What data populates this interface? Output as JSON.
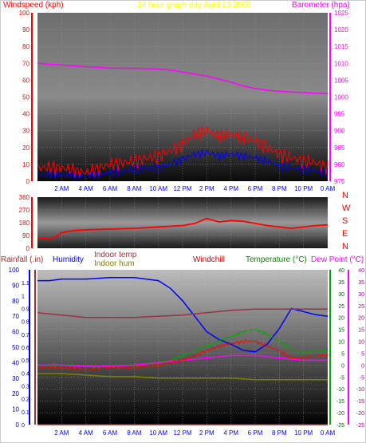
{
  "colors": {
    "red": "#ff0000",
    "darkred": "#cc0000",
    "magenta": "#ff00ff",
    "blue": "#0000ff",
    "yellow": "#ffff00",
    "green": "#00aa00",
    "olive": "#808000",
    "maroon": "#993344",
    "brown": "#993333",
    "navy": "#000099"
  },
  "header": {
    "windspeed_label": "Windspeed (kph)",
    "graph_title": "24 hour graph day   April 13 2006",
    "barometer_label": "Barometer (hpa)"
  },
  "legend_bottom": {
    "rainfall": "Rainfall (.in)",
    "humidity": "Humidity",
    "indoor_temp": "Indoor temp",
    "indoor_hum": "Indoor hum",
    "windchill": "Windchill",
    "temperature": "Temperature (°C)",
    "dew_point": "Dew Point (°C)"
  },
  "compass": [
    "N",
    "W",
    "S",
    "E",
    "N"
  ],
  "chart_data": [
    {
      "type": "line",
      "panel": "wind-barometer",
      "title": "24 hour graph day   April 13 2006",
      "x_ticks": [
        "2 AM",
        "4 AM",
        "6 AM",
        "8 AM",
        "10 AM",
        "12 PM",
        "2 PM",
        "4 PM",
        "6 PM",
        "8 PM",
        "10 PM",
        "0 AM"
      ],
      "left_axis": {
        "label": "Windspeed (kph)",
        "ylim": [
          0,
          100
        ],
        "ticks": [
          0,
          10,
          20,
          30,
          40,
          50,
          60,
          70,
          80,
          90,
          100
        ]
      },
      "right_axis": {
        "label": "Barometer (hpa)",
        "ylim": [
          975,
          1025
        ],
        "ticks": [
          975,
          980,
          985,
          990,
          995,
          1000,
          1005,
          1010,
          1015,
          1020,
          1025
        ]
      },
      "series": [
        {
          "name": "Barometer (hpa)",
          "axis": "right",
          "color": "#ff00ff",
          "x": [
            0,
            2,
            4,
            6,
            8,
            10,
            11,
            12,
            13,
            14,
            15,
            16,
            17,
            18,
            19,
            20,
            21,
            22,
            23,
            24
          ],
          "y": [
            1010,
            1009.5,
            1009,
            1008.6,
            1008.5,
            1008.3,
            1008,
            1007.4,
            1006.8,
            1006.2,
            1005.3,
            1004.4,
            1003.3,
            1002.5,
            1002,
            1001.7,
            1001.5,
            1001.3,
            1001.1,
            1001
          ]
        },
        {
          "name": "Gust",
          "axis": "left",
          "color": "#ff0000",
          "x": [
            0,
            2,
            4,
            6,
            8,
            10,
            11,
            12,
            13,
            14,
            15,
            16,
            17,
            18,
            19,
            20,
            21,
            22,
            23,
            24
          ],
          "y": [
            8,
            8,
            5,
            10,
            12,
            15,
            18,
            22,
            28,
            30,
            27,
            28,
            26,
            24,
            20,
            16,
            14,
            12,
            11,
            8
          ]
        },
        {
          "name": "Average",
          "axis": "left",
          "color": "#0000ff",
          "x": [
            0,
            2,
            4,
            6,
            8,
            10,
            11,
            12,
            13,
            14,
            15,
            16,
            17,
            18,
            19,
            20,
            21,
            22,
            23,
            24
          ],
          "y": [
            4,
            4,
            3,
            5,
            7,
            8,
            10,
            13,
            16,
            17,
            15,
            16,
            15,
            14,
            12,
            9,
            8,
            7,
            6,
            5
          ]
        }
      ]
    },
    {
      "type": "line",
      "panel": "wind-direction",
      "left_axis": {
        "ylim": [
          0,
          360
        ],
        "ticks": [
          0,
          90,
          180,
          270,
          360
        ]
      },
      "right_axis": {
        "ticks": [
          "N",
          "W",
          "S",
          "E",
          "N"
        ]
      },
      "series": [
        {
          "name": "Wind direction",
          "color": "#ff0000",
          "x": [
            0,
            0.5,
            1,
            1.5,
            2,
            3,
            4,
            6,
            8,
            10,
            12,
            13,
            14,
            15,
            16,
            17,
            18,
            19,
            20,
            21,
            22,
            23,
            24
          ],
          "y": [
            75,
            70,
            65,
            80,
            110,
            125,
            130,
            135,
            140,
            150,
            160,
            175,
            210,
            185,
            195,
            190,
            175,
            160,
            150,
            140,
            150,
            160,
            165
          ]
        }
      ]
    },
    {
      "type": "line",
      "panel": "temperature-humidity-rain",
      "axes": {
        "rainfall": {
          "label": "Rainfall (.in)",
          "ylim": [
            0,
            1.2
          ],
          "ticks": [
            0,
            0.1,
            0.2,
            0.3,
            0.4,
            0.5,
            0.6,
            0.7,
            0.8,
            0.9,
            1,
            1.1
          ]
        },
        "humidity": {
          "label": "Humidity",
          "ylim": [
            0,
            100
          ],
          "ticks": [
            0,
            10,
            20,
            30,
            40,
            50,
            60,
            70,
            80,
            90,
            100
          ]
        },
        "temperature": {
          "label": "Temperature (°C)",
          "ylim": [
            -25,
            40
          ],
          "ticks": [
            -25,
            -20,
            -15,
            -10,
            -5,
            0,
            5,
            10,
            15,
            20,
            25,
            30,
            35,
            40
          ]
        },
        "dew_point": {
          "label": "Dew Point (°C)",
          "ylim": [
            -25,
            40
          ],
          "ticks": [
            -25,
            -20,
            -15,
            -10,
            -5,
            0,
            5,
            10,
            15,
            20,
            25,
            30,
            35,
            40
          ]
        }
      },
      "series": [
        {
          "name": "Humidity",
          "axis": "humidity",
          "color": "#0000ff",
          "x": [
            0,
            1,
            2,
            4,
            6,
            8,
            10,
            11,
            12,
            13,
            14,
            15,
            16,
            17,
            18,
            19,
            20,
            21,
            22,
            23,
            24
          ],
          "y": [
            93,
            93,
            94,
            94,
            95,
            95,
            93,
            88,
            80,
            70,
            60,
            55,
            52,
            48,
            47,
            52,
            62,
            75,
            73,
            71,
            70
          ]
        },
        {
          "name": "Indoor temp",
          "axis": "temperature",
          "color": "#993344",
          "x": [
            0,
            2,
            4,
            6,
            8,
            10,
            12,
            14,
            16,
            18,
            20,
            22,
            24
          ],
          "y": [
            22,
            21,
            20,
            20,
            20,
            20.5,
            21,
            22,
            23,
            23.5,
            23.5,
            23.5,
            23.5
          ]
        },
        {
          "name": "Temperature (°C)",
          "axis": "temperature",
          "color": "#00aa00",
          "x": [
            0,
            2,
            4,
            6,
            8,
            10,
            11,
            12,
            13,
            14,
            15,
            16,
            17,
            18,
            19,
            20,
            21,
            22,
            23,
            24
          ],
          "y": [
            0,
            0,
            -0.5,
            -0.5,
            0,
            1,
            2,
            4,
            6,
            8,
            10,
            12,
            14,
            15,
            13,
            10,
            7,
            5,
            6,
            6
          ]
        },
        {
          "name": "Dew Point (°C)",
          "axis": "dew_point",
          "color": "#ff00ff",
          "x": [
            0,
            2,
            4,
            6,
            8,
            10,
            12,
            14,
            16,
            18,
            20,
            22,
            24
          ],
          "y": [
            0,
            0,
            -0.5,
            -0.5,
            0,
            1,
            2,
            3,
            4,
            4,
            3,
            2,
            2
          ]
        },
        {
          "name": "Windchill",
          "axis": "temperature",
          "color": "#ff0000",
          "x": [
            0,
            2,
            4,
            6,
            8,
            10,
            11,
            12,
            13,
            14,
            15,
            16,
            17,
            18,
            19,
            20,
            21,
            22,
            23,
            24
          ],
          "y": [
            -1,
            -1,
            -2,
            -1,
            -1,
            0,
            1,
            2,
            4,
            6,
            8,
            9,
            10,
            10,
            8,
            6,
            3,
            3,
            4,
            4
          ]
        },
        {
          "name": "Indoor hum",
          "axis": "humidity",
          "color": "#808000",
          "x": [
            0,
            2,
            4,
            6,
            8,
            10,
            12,
            14,
            16,
            18,
            20,
            22,
            24
          ],
          "y": [
            33,
            33,
            32,
            31,
            31,
            30,
            30,
            30,
            30,
            29,
            29,
            29,
            29
          ]
        },
        {
          "name": "Rainfall (.in)",
          "axis": "rainfall",
          "color": "#993333",
          "x": [
            0,
            24
          ],
          "y": [
            0,
            0
          ]
        }
      ]
    }
  ]
}
